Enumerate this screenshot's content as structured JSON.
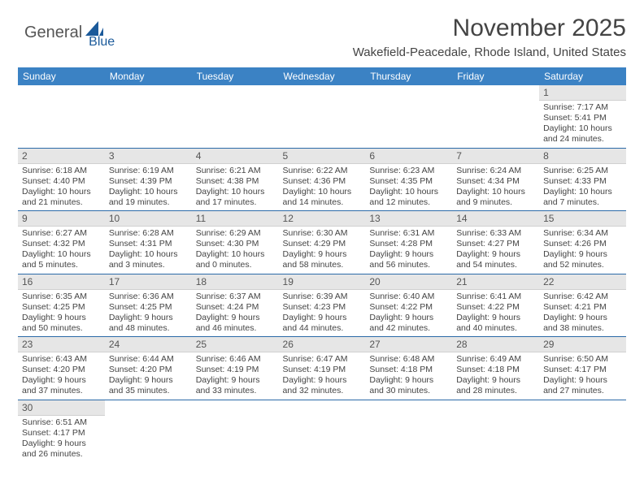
{
  "brand": {
    "part1": "General",
    "part2": "Blue"
  },
  "title": "November 2025",
  "subtitle": "Wakefield-Peacedale, Rhode Island, United States",
  "colors": {
    "header_bg": "#3b82c4",
    "header_text": "#ffffff",
    "daynum_bg": "#e6e6e6",
    "row_border": "#2b6aa8",
    "text": "#444444",
    "logo_gray": "#555555",
    "logo_blue": "#1b5a9a",
    "background": "#ffffff"
  },
  "typography": {
    "title_fontsize": 30,
    "subtitle_fontsize": 15,
    "header_fontsize": 12,
    "cell_fontsize": 10.5,
    "daynum_fontsize": 12
  },
  "weekdays": [
    "Sunday",
    "Monday",
    "Tuesday",
    "Wednesday",
    "Thursday",
    "Friday",
    "Saturday"
  ],
  "weeks": [
    [
      null,
      null,
      null,
      null,
      null,
      null,
      {
        "day": "1",
        "sunrise": "Sunrise: 7:17 AM",
        "sunset": "Sunset: 5:41 PM",
        "daylight": "Daylight: 10 hours and 24 minutes."
      }
    ],
    [
      {
        "day": "2",
        "sunrise": "Sunrise: 6:18 AM",
        "sunset": "Sunset: 4:40 PM",
        "daylight": "Daylight: 10 hours and 21 minutes."
      },
      {
        "day": "3",
        "sunrise": "Sunrise: 6:19 AM",
        "sunset": "Sunset: 4:39 PM",
        "daylight": "Daylight: 10 hours and 19 minutes."
      },
      {
        "day": "4",
        "sunrise": "Sunrise: 6:21 AM",
        "sunset": "Sunset: 4:38 PM",
        "daylight": "Daylight: 10 hours and 17 minutes."
      },
      {
        "day": "5",
        "sunrise": "Sunrise: 6:22 AM",
        "sunset": "Sunset: 4:36 PM",
        "daylight": "Daylight: 10 hours and 14 minutes."
      },
      {
        "day": "6",
        "sunrise": "Sunrise: 6:23 AM",
        "sunset": "Sunset: 4:35 PM",
        "daylight": "Daylight: 10 hours and 12 minutes."
      },
      {
        "day": "7",
        "sunrise": "Sunrise: 6:24 AM",
        "sunset": "Sunset: 4:34 PM",
        "daylight": "Daylight: 10 hours and 9 minutes."
      },
      {
        "day": "8",
        "sunrise": "Sunrise: 6:25 AM",
        "sunset": "Sunset: 4:33 PM",
        "daylight": "Daylight: 10 hours and 7 minutes."
      }
    ],
    [
      {
        "day": "9",
        "sunrise": "Sunrise: 6:27 AM",
        "sunset": "Sunset: 4:32 PM",
        "daylight": "Daylight: 10 hours and 5 minutes."
      },
      {
        "day": "10",
        "sunrise": "Sunrise: 6:28 AM",
        "sunset": "Sunset: 4:31 PM",
        "daylight": "Daylight: 10 hours and 3 minutes."
      },
      {
        "day": "11",
        "sunrise": "Sunrise: 6:29 AM",
        "sunset": "Sunset: 4:30 PM",
        "daylight": "Daylight: 10 hours and 0 minutes."
      },
      {
        "day": "12",
        "sunrise": "Sunrise: 6:30 AM",
        "sunset": "Sunset: 4:29 PM",
        "daylight": "Daylight: 9 hours and 58 minutes."
      },
      {
        "day": "13",
        "sunrise": "Sunrise: 6:31 AM",
        "sunset": "Sunset: 4:28 PM",
        "daylight": "Daylight: 9 hours and 56 minutes."
      },
      {
        "day": "14",
        "sunrise": "Sunrise: 6:33 AM",
        "sunset": "Sunset: 4:27 PM",
        "daylight": "Daylight: 9 hours and 54 minutes."
      },
      {
        "day": "15",
        "sunrise": "Sunrise: 6:34 AM",
        "sunset": "Sunset: 4:26 PM",
        "daylight": "Daylight: 9 hours and 52 minutes."
      }
    ],
    [
      {
        "day": "16",
        "sunrise": "Sunrise: 6:35 AM",
        "sunset": "Sunset: 4:25 PM",
        "daylight": "Daylight: 9 hours and 50 minutes."
      },
      {
        "day": "17",
        "sunrise": "Sunrise: 6:36 AM",
        "sunset": "Sunset: 4:25 PM",
        "daylight": "Daylight: 9 hours and 48 minutes."
      },
      {
        "day": "18",
        "sunrise": "Sunrise: 6:37 AM",
        "sunset": "Sunset: 4:24 PM",
        "daylight": "Daylight: 9 hours and 46 minutes."
      },
      {
        "day": "19",
        "sunrise": "Sunrise: 6:39 AM",
        "sunset": "Sunset: 4:23 PM",
        "daylight": "Daylight: 9 hours and 44 minutes."
      },
      {
        "day": "20",
        "sunrise": "Sunrise: 6:40 AM",
        "sunset": "Sunset: 4:22 PM",
        "daylight": "Daylight: 9 hours and 42 minutes."
      },
      {
        "day": "21",
        "sunrise": "Sunrise: 6:41 AM",
        "sunset": "Sunset: 4:22 PM",
        "daylight": "Daylight: 9 hours and 40 minutes."
      },
      {
        "day": "22",
        "sunrise": "Sunrise: 6:42 AM",
        "sunset": "Sunset: 4:21 PM",
        "daylight": "Daylight: 9 hours and 38 minutes."
      }
    ],
    [
      {
        "day": "23",
        "sunrise": "Sunrise: 6:43 AM",
        "sunset": "Sunset: 4:20 PM",
        "daylight": "Daylight: 9 hours and 37 minutes."
      },
      {
        "day": "24",
        "sunrise": "Sunrise: 6:44 AM",
        "sunset": "Sunset: 4:20 PM",
        "daylight": "Daylight: 9 hours and 35 minutes."
      },
      {
        "day": "25",
        "sunrise": "Sunrise: 6:46 AM",
        "sunset": "Sunset: 4:19 PM",
        "daylight": "Daylight: 9 hours and 33 minutes."
      },
      {
        "day": "26",
        "sunrise": "Sunrise: 6:47 AM",
        "sunset": "Sunset: 4:19 PM",
        "daylight": "Daylight: 9 hours and 32 minutes."
      },
      {
        "day": "27",
        "sunrise": "Sunrise: 6:48 AM",
        "sunset": "Sunset: 4:18 PM",
        "daylight": "Daylight: 9 hours and 30 minutes."
      },
      {
        "day": "28",
        "sunrise": "Sunrise: 6:49 AM",
        "sunset": "Sunset: 4:18 PM",
        "daylight": "Daylight: 9 hours and 28 minutes."
      },
      {
        "day": "29",
        "sunrise": "Sunrise: 6:50 AM",
        "sunset": "Sunset: 4:17 PM",
        "daylight": "Daylight: 9 hours and 27 minutes."
      }
    ],
    [
      {
        "day": "30",
        "sunrise": "Sunrise: 6:51 AM",
        "sunset": "Sunset: 4:17 PM",
        "daylight": "Daylight: 9 hours and 26 minutes."
      },
      null,
      null,
      null,
      null,
      null,
      null
    ]
  ]
}
